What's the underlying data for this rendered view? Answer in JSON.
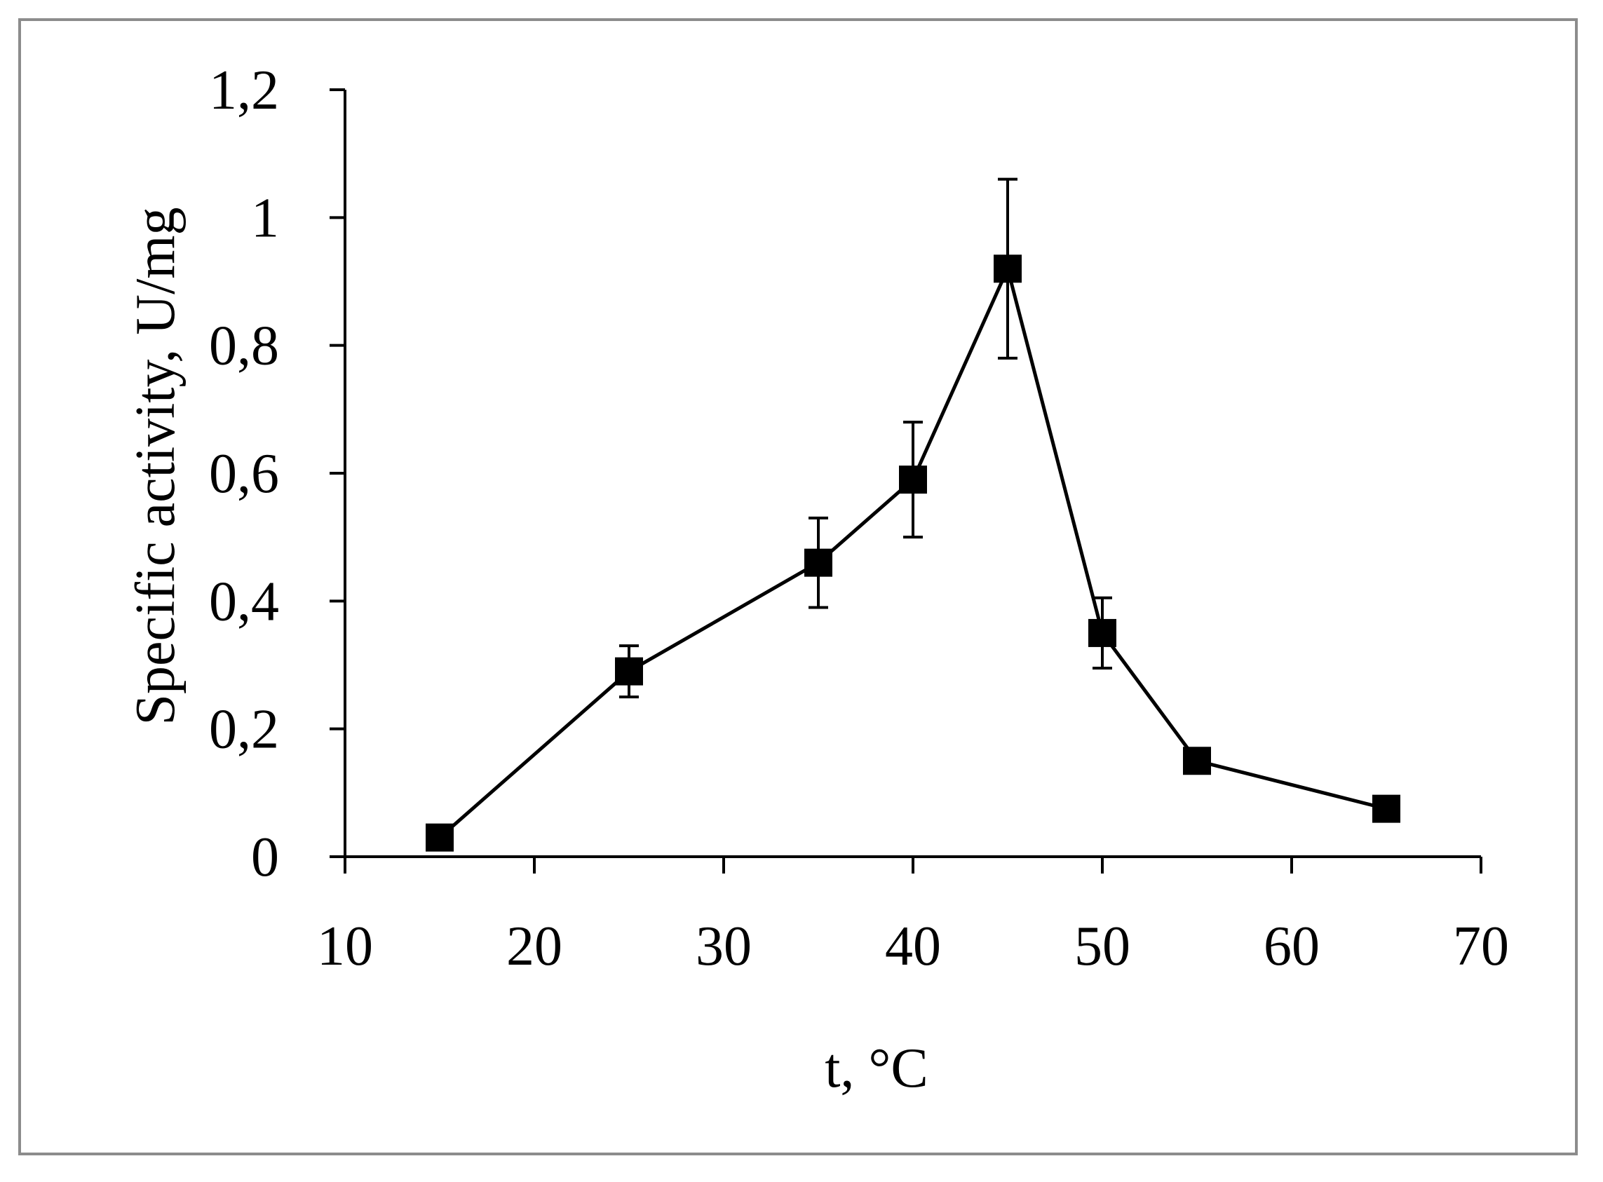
{
  "chart_data": {
    "type": "line",
    "title": "",
    "xlabel": "t, °C",
    "ylabel": "Specific activity, U/mg",
    "xlim": [
      10,
      70
    ],
    "ylim": [
      0,
      1.2
    ],
    "x_ticks": [
      10,
      20,
      30,
      40,
      50,
      60,
      70
    ],
    "x_tick_labels": [
      "10",
      "20",
      "30",
      "40",
      "50",
      "60",
      "70"
    ],
    "y_ticks": [
      0,
      0.2,
      0.4,
      0.6,
      0.8,
      1.0,
      1.2
    ],
    "y_tick_labels": [
      "0",
      "0,2",
      "0,4",
      "0,6",
      "0,8",
      "1",
      "1,2"
    ],
    "grid": false,
    "legend": "none",
    "marker": "square",
    "color": "#000000",
    "series": [
      {
        "x": [
          15,
          25,
          35,
          40,
          45,
          50,
          55,
          65
        ],
        "y": [
          0.03,
          0.29,
          0.46,
          0.59,
          0.92,
          0.35,
          0.15,
          0.075
        ],
        "error": [
          0,
          0.04,
          0.07,
          0.09,
          0.14,
          0.055,
          0,
          0
        ]
      }
    ]
  }
}
